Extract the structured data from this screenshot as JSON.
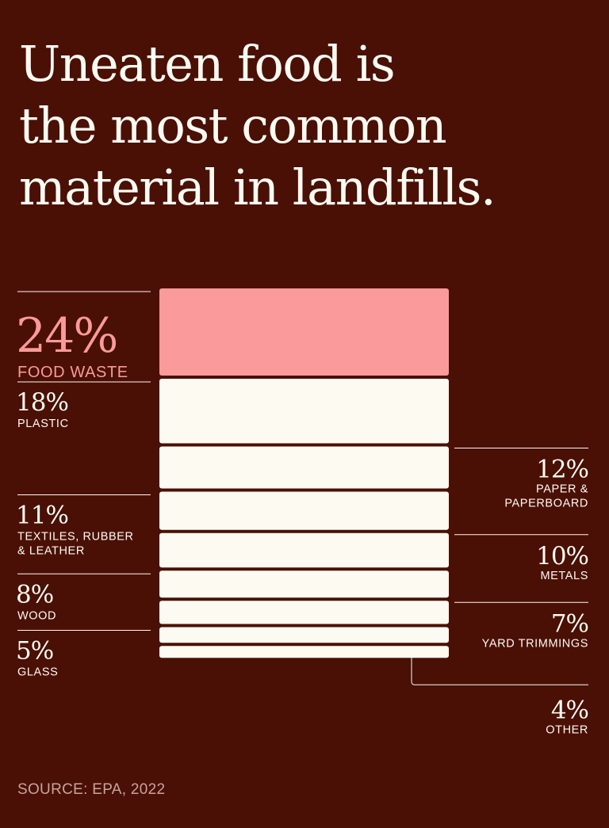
{
  "title_lines": [
    "Uneaten food is",
    "the most common",
    "material in landfills."
  ],
  "source": "SOURCE: EPA, 2022",
  "colors": {
    "background": "#4a1005",
    "highlight": "#fa9a9a",
    "bar": "#fdfaf2",
    "rule": "#fdfaf2"
  },
  "chart_data": {
    "type": "bar",
    "orientation": "stacked-column",
    "unit": "%",
    "categories": [
      {
        "pct_label": "24%",
        "label_lines": [
          "FOOD WASTE"
        ],
        "value": 24,
        "side": "left",
        "highlight": true
      },
      {
        "pct_label": "18%",
        "label_lines": [
          "PLASTIC"
        ],
        "value": 18,
        "side": "left",
        "highlight": false
      },
      {
        "pct_label": "12%",
        "label_lines": [
          "PAPER &",
          "PAPERBOARD"
        ],
        "value": 12,
        "side": "right",
        "highlight": false
      },
      {
        "pct_label": "11%",
        "label_lines": [
          "TEXTILES, RUBBER",
          "& LEATHER"
        ],
        "value": 11,
        "side": "left",
        "highlight": false
      },
      {
        "pct_label": "10%",
        "label_lines": [
          "METALS"
        ],
        "value": 10,
        "side": "right",
        "highlight": false
      },
      {
        "pct_label": "8%",
        "label_lines": [
          "WOOD"
        ],
        "value": 8,
        "side": "left",
        "highlight": false
      },
      {
        "pct_label": "7%",
        "label_lines": [
          "YARD TRIMMINGS"
        ],
        "value": 7,
        "side": "right",
        "highlight": false
      },
      {
        "pct_label": "5%",
        "label_lines": [
          "GLASS"
        ],
        "value": 5,
        "side": "left",
        "highlight": false
      },
      {
        "pct_label": "4%",
        "label_lines": [
          "OTHER"
        ],
        "value": 4,
        "side": "right",
        "highlight": false
      }
    ]
  }
}
